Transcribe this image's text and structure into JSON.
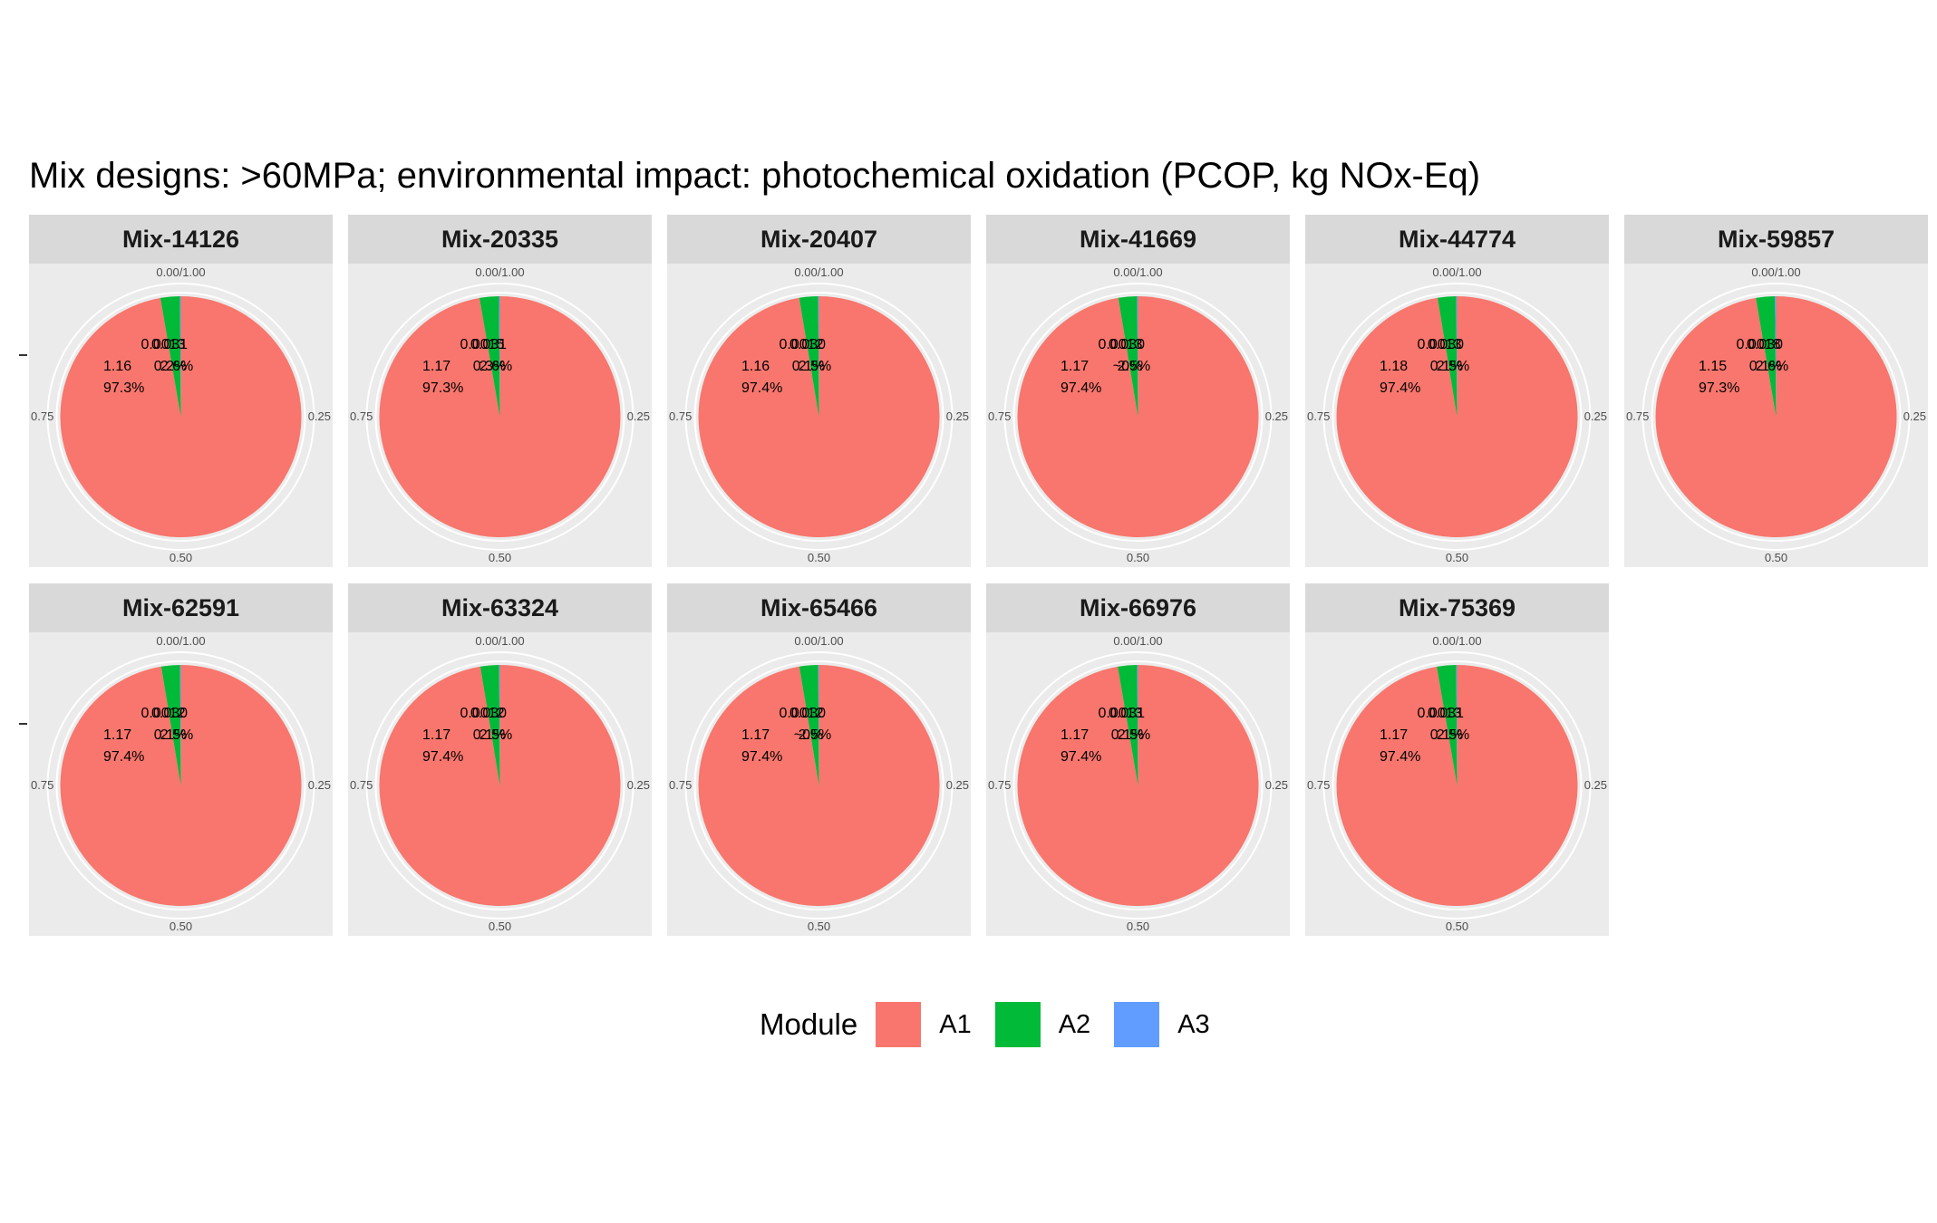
{
  "chart_data": {
    "type": "pie",
    "title": "Mix designs: >60MPa; environmental impact: photochemical oxidation (PCOP, kg NOx-Eq)",
    "theta_ticks": [
      "0.00/1.00",
      "0.25",
      "0.50",
      "0.75"
    ],
    "legend": {
      "title": "Module",
      "placement": "bottom",
      "entries": [
        {
          "name": "A1",
          "color": "#F8766D"
        },
        {
          "name": "A2",
          "color": "#00BA38"
        },
        {
          "name": "A3",
          "color": "#619CFF"
        }
      ]
    },
    "panels": [
      {
        "name": "Mix-14126",
        "slices": [
          {
            "module": "A1",
            "value": 1.16,
            "percent": 97.3,
            "label": "1.16",
            "pct_label": "97.3%"
          },
          {
            "module": "A2",
            "value": 0.031,
            "percent": 2.6,
            "label": "0.031",
            "pct_label": "2.6%"
          },
          {
            "module": "A3",
            "value": 0.0013,
            "percent": 0.2,
            "label": "0.0013",
            "pct_label": "0.2%"
          }
        ]
      },
      {
        "name": "Mix-20335",
        "slices": [
          {
            "module": "A1",
            "value": 1.17,
            "percent": 97.3,
            "label": "1.17",
            "pct_label": "97.3%"
          },
          {
            "module": "A2",
            "value": 0.031,
            "percent": 2.6,
            "label": "0.031",
            "pct_label": "2.6%"
          },
          {
            "module": "A3",
            "value": 0.0015,
            "percent": 0.3,
            "label": "0.0015",
            "pct_label": "0.3%"
          }
        ]
      },
      {
        "name": "Mix-20407",
        "slices": [
          {
            "module": "A1",
            "value": 1.16,
            "percent": 97.4,
            "label": "1.16",
            "pct_label": "97.4%"
          },
          {
            "module": "A2",
            "value": 0.03,
            "percent": 2.5,
            "label": "0.030",
            "pct_label": "2.5%"
          },
          {
            "module": "A3",
            "value": 0.0012,
            "percent": 0.1,
            "label": "0.0012",
            "pct_label": "0.1%"
          }
        ]
      },
      {
        "name": "Mix-41669",
        "slices": [
          {
            "module": "A1",
            "value": 1.17,
            "percent": 97.4,
            "label": "1.17",
            "pct_label": "97.4%"
          },
          {
            "module": "A2",
            "value": 0.03,
            "percent": 2.5,
            "label": "0.030",
            "pct_label": "2.5%"
          },
          {
            "module": "A3",
            "value": 0.0013,
            "percent": 0.1,
            "label": "0.0013",
            "pct_label": "~0%"
          }
        ]
      },
      {
        "name": "Mix-44774",
        "slices": [
          {
            "module": "A1",
            "value": 1.18,
            "percent": 97.4,
            "label": "1.18",
            "pct_label": "97.4%"
          },
          {
            "module": "A2",
            "value": 0.03,
            "percent": 2.5,
            "label": "0.030",
            "pct_label": "2.5%"
          },
          {
            "module": "A3",
            "value": 0.0013,
            "percent": 0.1,
            "label": "0.0013",
            "pct_label": "0.1%"
          }
        ]
      },
      {
        "name": "Mix-59857",
        "slices": [
          {
            "module": "A1",
            "value": 1.15,
            "percent": 97.3,
            "label": "1.15",
            "pct_label": "97.3%"
          },
          {
            "module": "A2",
            "value": 0.03,
            "percent": 2.6,
            "label": "0.030",
            "pct_label": "2.6%"
          },
          {
            "module": "A3",
            "value": 0.0018,
            "percent": 0.1,
            "label": "0.0018",
            "pct_label": "0.1%"
          }
        ]
      },
      {
        "name": "Mix-62591",
        "slices": [
          {
            "module": "A1",
            "value": 1.17,
            "percent": 97.4,
            "label": "1.17",
            "pct_label": "97.4%"
          },
          {
            "module": "A2",
            "value": 0.03,
            "percent": 2.5,
            "label": "0.030",
            "pct_label": "2.5%"
          },
          {
            "module": "A3",
            "value": 0.0012,
            "percent": 0.1,
            "label": "0.0012",
            "pct_label": "0.1%"
          }
        ]
      },
      {
        "name": "Mix-63324",
        "slices": [
          {
            "module": "A1",
            "value": 1.17,
            "percent": 97.4,
            "label": "1.17",
            "pct_label": "97.4%"
          },
          {
            "module": "A2",
            "value": 0.03,
            "percent": 2.5,
            "label": "0.030",
            "pct_label": "2.5%"
          },
          {
            "module": "A3",
            "value": 0.0012,
            "percent": 0.1,
            "label": "0.0012",
            "pct_label": "0.1%"
          }
        ]
      },
      {
        "name": "Mix-65466",
        "slices": [
          {
            "module": "A1",
            "value": 1.17,
            "percent": 97.4,
            "label": "1.17",
            "pct_label": "97.4%"
          },
          {
            "module": "A2",
            "value": 0.03,
            "percent": 2.5,
            "label": "0.030",
            "pct_label": "2.5%"
          },
          {
            "module": "A3",
            "value": 0.0012,
            "percent": 0.1,
            "label": "0.0012",
            "pct_label": "~0%"
          }
        ]
      },
      {
        "name": "Mix-66976",
        "slices": [
          {
            "module": "A1",
            "value": 1.17,
            "percent": 97.4,
            "label": "1.17",
            "pct_label": "97.4%"
          },
          {
            "module": "A2",
            "value": 0.031,
            "percent": 2.5,
            "label": "0.031",
            "pct_label": "2.5%"
          },
          {
            "module": "A3",
            "value": 0.0013,
            "percent": 0.1,
            "label": "0.0013",
            "pct_label": "0.1%"
          }
        ]
      },
      {
        "name": "Mix-75369",
        "slices": [
          {
            "module": "A1",
            "value": 1.17,
            "percent": 97.4,
            "label": "1.17",
            "pct_label": "97.4%"
          },
          {
            "module": "A2",
            "value": 0.031,
            "percent": 2.5,
            "label": "0.031",
            "pct_label": "2.5%"
          },
          {
            "module": "A3",
            "value": 0.0013,
            "percent": 0.1,
            "label": "0.0013",
            "pct_label": "0.1%"
          }
        ]
      }
    ]
  }
}
